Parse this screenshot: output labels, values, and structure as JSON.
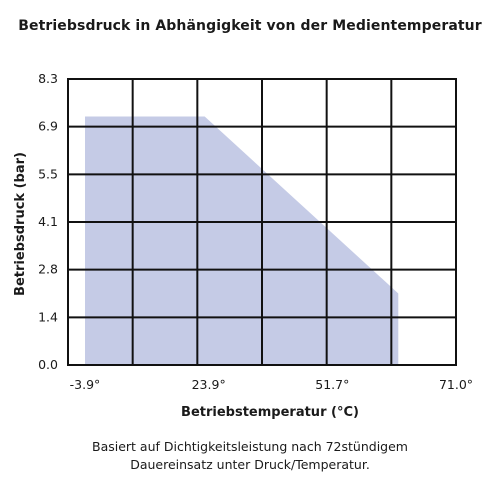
{
  "chart_data": {
    "type": "area",
    "title": "Betriebsdruck in Abhängigkeit von der Medientemperatur",
    "xlabel": "Betriebstemperatur  (°C)",
    "ylabel": "Betriebsdruck (bar)",
    "x_ticks": [
      -3.9,
      23.9,
      51.7,
      71.0
    ],
    "x_tick_labels": [
      "-3.9°",
      "23.9°",
      "51.7°",
      "71.0°"
    ],
    "y_ticks": [
      0.0,
      1.4,
      2.8,
      4.1,
      5.5,
      6.9,
      8.3
    ],
    "y_tick_labels": [
      "0.0",
      "1.4",
      "2.8",
      "4.1",
      "5.5",
      "6.9",
      "8.3"
    ],
    "xlim": [
      -3.9,
      71.0
    ],
    "ylim": [
      0.0,
      8.3
    ],
    "grid": true,
    "series": [
      {
        "color": "#c5cbe6",
        "points": [
          {
            "x": -3.9,
            "y": 0.0
          },
          {
            "x": -3.9,
            "y": 7.2
          },
          {
            "x": 23.0,
            "y": 7.2
          },
          {
            "x": 62.0,
            "y": 2.1
          },
          {
            "x": 62.0,
            "y": 0.0
          }
        ]
      }
    ]
  },
  "footnote": {
    "line1": "Basiert auf Dichtigkeitsleistung nach 72stündigem",
    "line2": "Dauereinsatz unter Druck/Temperatur."
  }
}
